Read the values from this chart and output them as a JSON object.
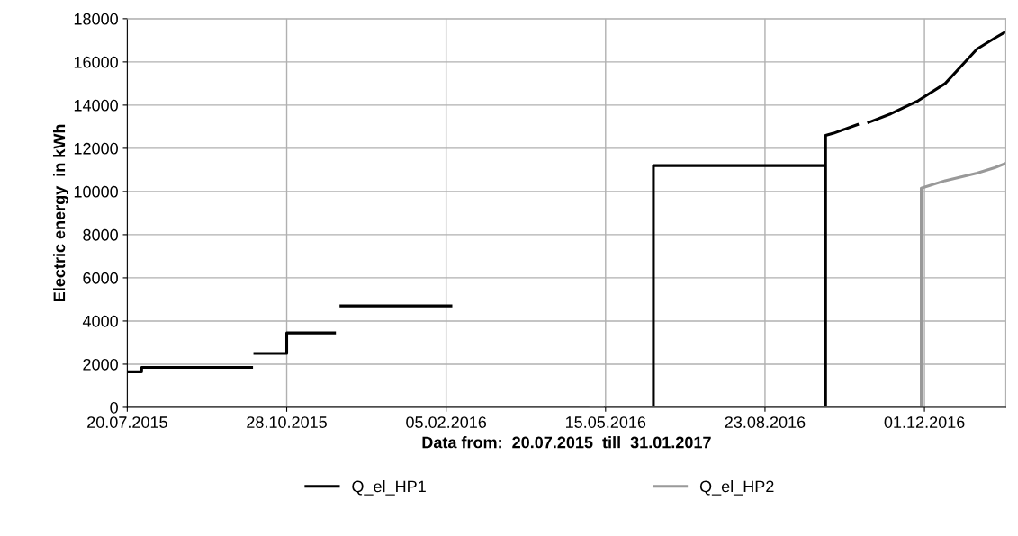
{
  "chart_data": {
    "type": "line",
    "xlabel": "Data from:  20.07.2015  till  31.01.2017",
    "ylabel": "Electric energy  in kWh",
    "xlim": [
      "2015-07-20",
      "2017-01-21"
    ],
    "xticks": [
      {
        "value": "2015-07-20",
        "label": "20.07.2015"
      },
      {
        "value": "2015-10-28",
        "label": "28.10.2015"
      },
      {
        "value": "2016-02-05",
        "label": "05.02.2016"
      },
      {
        "value": "2016-05-15",
        "label": "15.05.2016"
      },
      {
        "value": "2016-08-23",
        "label": "23.08.2016"
      },
      {
        "value": "2016-12-01",
        "label": "01.12.2016"
      }
    ],
    "ylim": [
      0,
      18000
    ],
    "yticks": [
      0,
      2000,
      4000,
      6000,
      8000,
      10000,
      12000,
      14000,
      16000,
      18000
    ],
    "grid": true,
    "legend": "bottom",
    "marker": "none",
    "line_style": "solid",
    "series": [
      {
        "name": "Q_el_HP1",
        "color": "#000000",
        "x": [
          "2015-07-20",
          "2015-07-29",
          "2015-07-29",
          "2015-10-06"
        ],
        "values": [
          1650,
          1650,
          1850,
          1850
        ]
      },
      {
        "color": "#000000",
        "x": [
          "2015-10-08",
          "2015-10-28",
          "2015-10-28",
          "2015-11-27"
        ],
        "values": [
          2500,
          2500,
          3450,
          3450
        ]
      },
      {
        "color": "#000000",
        "x": [
          "2015-12-01",
          "2016-02-08"
        ],
        "values": [
          4700,
          4700
        ]
      },
      {
        "color": "#000000",
        "x": [
          "2016-05-15",
          "2016-06-14",
          "2016-06-14",
          "2016-09-30",
          "2016-09-30",
          "2016-09-30",
          "2016-10-05",
          "2016-10-20"
        ],
        "values": [
          0,
          0,
          11200,
          11200,
          0,
          12600,
          12700,
          13100
        ]
      },
      {
        "color": "#000000",
        "x": [
          "2016-10-27",
          "2016-11-10",
          "2016-11-27",
          "2016-12-14",
          "2017-01-03",
          "2017-01-14",
          "2017-01-21"
        ],
        "values": [
          13200,
          13600,
          14200,
          15000,
          16600,
          17100,
          17400
        ]
      },
      {
        "name": "Q_el_HP2",
        "color": "#999999",
        "x": [
          "2015-07-20",
          "2016-05-04"
        ],
        "values": [
          0,
          0
        ]
      },
      {
        "color": "#999999",
        "x": [
          "2016-05-15",
          "2016-11-29",
          "2016-11-29",
          "2016-12-14",
          "2017-01-03",
          "2017-01-14",
          "2017-01-21"
        ],
        "values": [
          0,
          0,
          10150,
          10500,
          10850,
          11100,
          11300
        ]
      }
    ]
  }
}
